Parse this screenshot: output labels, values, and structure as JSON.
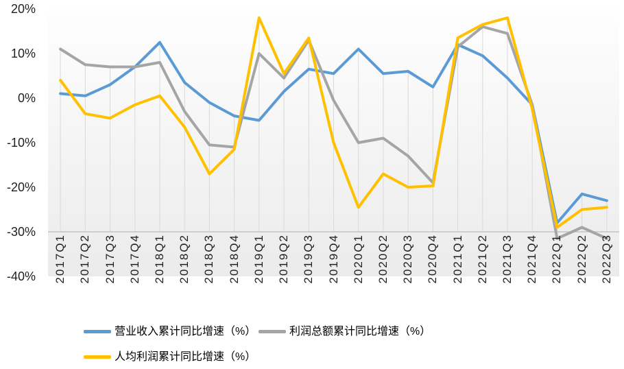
{
  "chart_data": {
    "type": "line",
    "title": "",
    "categories": [
      "2017Q1",
      "2017Q2",
      "2017Q3",
      "2017Q4",
      "2018Q1",
      "2018Q2",
      "2018Q3",
      "2018Q4",
      "2019Q1",
      "2019Q2",
      "2019Q3",
      "2019Q4",
      "2020Q1",
      "2020Q2",
      "2020Q3",
      "2020Q4",
      "2021Q1",
      "2021Q2",
      "2021Q3",
      "2021Q4",
      "2022Q1",
      "2022Q2",
      "2022Q3"
    ],
    "series": [
      {
        "name": "营业收入累计同比增速（%）",
        "color": "#5B9BD5",
        "values": [
          1,
          0.5,
          3,
          7,
          12.5,
          3.5,
          -1,
          -4,
          -5,
          1.5,
          6.5,
          5.5,
          11,
          5.5,
          6,
          2.5,
          12,
          9.5,
          4.5,
          -1.5,
          -28,
          -21.5,
          -23
        ]
      },
      {
        "name": "利润总额累计同比增速（%）",
        "color": "#A5A5A5",
        "values": [
          11,
          7.5,
          7,
          7,
          8,
          -3,
          -10.5,
          -11,
          10,
          4.5,
          13,
          -0.5,
          -10,
          -9,
          -13,
          -19,
          11.5,
          16,
          14.5,
          -1.5,
          -31.5,
          -29,
          -31.5
        ]
      },
      {
        "name": "人均利润累计同比增速（%）",
        "color": "#FFC000",
        "values": [
          4,
          -3.5,
          -4.5,
          -1.5,
          0.5,
          -6.5,
          -17,
          -11.5,
          18,
          5.5,
          13.5,
          -10,
          -24.5,
          -17,
          -20,
          -19.7,
          13.5,
          16.5,
          18,
          -2.5,
          -29,
          -25,
          -24.5
        ]
      }
    ],
    "y_axis": {
      "ticks": [
        "20%",
        "10%",
        "0%",
        "-10%",
        "-20%",
        "-30%",
        "-40%"
      ],
      "tick_values": [
        20,
        10,
        0,
        -10,
        -20,
        -30,
        -40
      ],
      "min": -40,
      "max": 20,
      "axis_crosses_at": -30
    },
    "grid": "vertical-drop-lines-to-category-axis",
    "legend_position": "bottom"
  },
  "colors": {
    "axis_line": "#C3C3C3",
    "drop_line": "#D9D9D9",
    "plot_bg_top": "#FEFEFE",
    "plot_bg_bottom": "#EBEBEB",
    "tick_text": "#1F1F1F",
    "legend_text": "#000000"
  }
}
